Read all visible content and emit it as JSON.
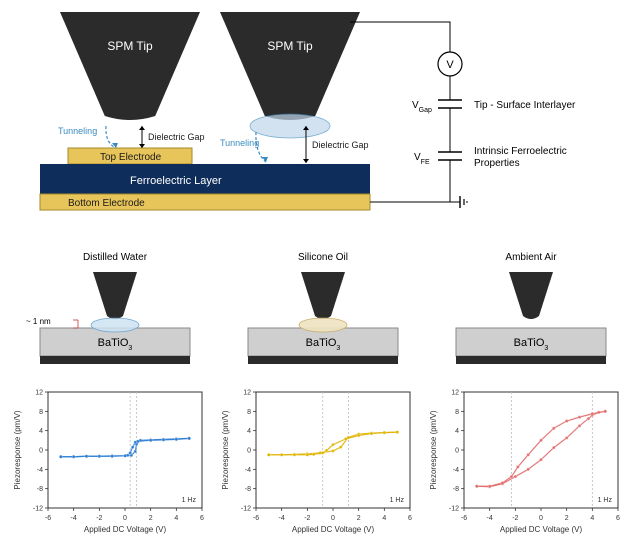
{
  "top": {
    "tip_label": "SPM Tip",
    "tunneling": "Tunneling",
    "dielectric_gap": "Dielectric Gap",
    "top_electrode": "Top Electrode",
    "ferroelectric_layer": "Ferroelectric Layer",
    "bottom_electrode": "Bottom Electrode",
    "v_label": "V",
    "vgap_label": "V",
    "vgap_sub": "Gap",
    "vfe_label": "V",
    "vfe_sub": "FE",
    "interlayer_text": "Tip - Surface Interlayer",
    "intrinsic_text_1": "Intrinsic Ferroelectric",
    "intrinsic_text_2": "Properties",
    "colors": {
      "tip": "#2b2b2b",
      "electrode": "#e8c55a",
      "ferroelectric": "#0f2d5a",
      "tunneling": "#3a8bc0",
      "meniscus_fill": "#bfd7ea",
      "text_dark": "#1a1a1a",
      "text_teal": "#3a8bc0"
    }
  },
  "mid": {
    "titles": [
      "Distilled Water",
      "Silicone Oil",
      "Ambient Air"
    ],
    "gap_label": "Dielectric Gap",
    "gap_size": "~ 1 nm",
    "substrate_label": "BaTiO",
    "substrate_sub": "3",
    "colors": {
      "tip": "#2b2b2b",
      "substrate": "#cfcfcf",
      "base": "#2b2b2b",
      "water_fill": "#cde3f2",
      "water_stroke": "#5a9bd4",
      "oil_fill": "#efe3c2",
      "oil_stroke": "#c8aa5a"
    }
  },
  "charts": {
    "xlabel": "Applied DC Voltage (V)",
    "ylabel": "Piezoresponse (pm/V)",
    "xlim": [
      -6,
      6
    ],
    "xtick_step": 2,
    "ylim": [
      -12,
      12
    ],
    "ytick_step": 4,
    "note": "1 Hz",
    "grid_color": "#bbbbbb",
    "axis_color": "#333333",
    "series": [
      {
        "color": "#2d7dd2",
        "coercive": [
          0.4,
          0.9
        ],
        "forward": [
          [
            -5,
            -1.4
          ],
          [
            -4,
            -1.4
          ],
          [
            -3,
            -1.3
          ],
          [
            -2,
            -1.3
          ],
          [
            -1,
            -1.2
          ],
          [
            0,
            -1.2
          ],
          [
            0.5,
            -1.1
          ],
          [
            0.8,
            -0.3
          ],
          [
            0.9,
            1.2
          ],
          [
            1.2,
            2.0
          ],
          [
            2,
            2.1
          ],
          [
            3,
            2.2
          ],
          [
            4,
            2.3
          ],
          [
            5,
            2.4
          ]
        ],
        "backward": [
          [
            5,
            2.4
          ],
          [
            4,
            2.2
          ],
          [
            3,
            2.1
          ],
          [
            2,
            2.0
          ],
          [
            1,
            1.8
          ],
          [
            0.8,
            1.6
          ],
          [
            0.6,
            0.6
          ],
          [
            0.4,
            -0.6
          ],
          [
            0.2,
            -1.1
          ],
          [
            0,
            -1.2
          ],
          [
            -1,
            -1.3
          ],
          [
            -2,
            -1.3
          ],
          [
            -3,
            -1.3
          ],
          [
            -4,
            -1.4
          ],
          [
            -5,
            -1.4
          ]
        ]
      },
      {
        "color": "#e0b400",
        "coercive": [
          -0.8,
          1.2
        ],
        "forward": [
          [
            -5,
            -1.0
          ],
          [
            -4,
            -1.0
          ],
          [
            -3,
            -0.9
          ],
          [
            -2,
            -0.8
          ],
          [
            -1,
            -0.6
          ],
          [
            0,
            -0.2
          ],
          [
            0.6,
            0.6
          ],
          [
            1.2,
            2.6
          ],
          [
            2,
            3.3
          ],
          [
            3,
            3.5
          ],
          [
            4,
            3.6
          ],
          [
            5,
            3.7
          ]
        ],
        "backward": [
          [
            5,
            3.7
          ],
          [
            4,
            3.6
          ],
          [
            3,
            3.4
          ],
          [
            2,
            3.0
          ],
          [
            1,
            2.3
          ],
          [
            0,
            1.1
          ],
          [
            -0.5,
            -0.1
          ],
          [
            -0.8,
            -0.6
          ],
          [
            -1.5,
            -0.9
          ],
          [
            -2,
            -1.0
          ],
          [
            -3,
            -1.0
          ],
          [
            -4,
            -1.0
          ],
          [
            -5,
            -1.0
          ]
        ]
      },
      {
        "color": "#e26a6a",
        "coercive": [
          -2.3,
          4.0
        ],
        "forward": [
          [
            -5,
            -7.5
          ],
          [
            -4,
            -7.6
          ],
          [
            -3,
            -7.0
          ],
          [
            -2,
            -5.5
          ],
          [
            -1,
            -4.0
          ],
          [
            0,
            -2.0
          ],
          [
            1,
            0.5
          ],
          [
            2,
            2.5
          ],
          [
            3,
            5.0
          ],
          [
            3.7,
            6.5
          ],
          [
            4.0,
            7.2
          ],
          [
            4.5,
            7.8
          ],
          [
            5,
            8.0
          ]
        ],
        "backward": [
          [
            5,
            8.0
          ],
          [
            4,
            7.5
          ],
          [
            3,
            6.8
          ],
          [
            2,
            6.0
          ],
          [
            1,
            4.5
          ],
          [
            0,
            2.0
          ],
          [
            -1,
            -1.0
          ],
          [
            -1.8,
            -3.5
          ],
          [
            -2.3,
            -5.5
          ],
          [
            -3,
            -6.8
          ],
          [
            -4,
            -7.5
          ],
          [
            -5,
            -7.5
          ]
        ]
      }
    ]
  }
}
